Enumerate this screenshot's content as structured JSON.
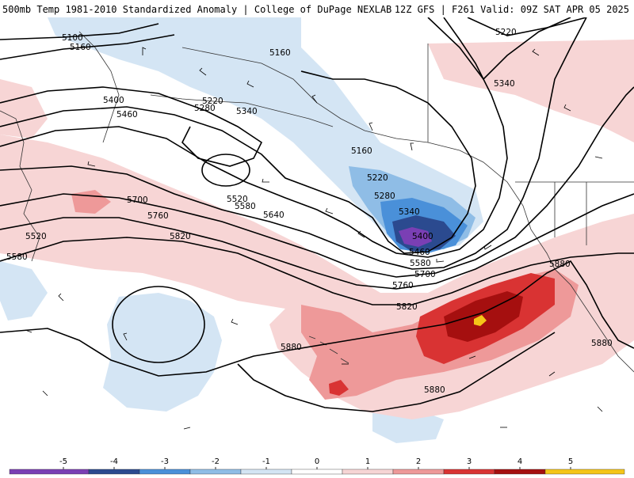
{
  "header": {
    "title_left": "500mb Temp 1981-2010 Standardized Anomaly | College of DuPage NEXLAB",
    "title_right": "12Z GFS | F261 Valid: 09Z SAT APR 05 2025"
  },
  "contour_labels": [
    "5100",
    "5160",
    "5160",
    "5220",
    "5220",
    "5280",
    "5340",
    "5400",
    "5460",
    "5160",
    "5220",
    "5280",
    "5340",
    "5400",
    "5460",
    "5520",
    "5580",
    "5640",
    "5700",
    "5760",
    "5820",
    "5520",
    "5580",
    "5580",
    "5700",
    "5760",
    "5820",
    "5880",
    "5880",
    "5880",
    "5880",
    "5340"
  ],
  "colorbar": {
    "tick_labels": [
      "-5",
      "-4",
      "-3",
      "-2",
      "-1",
      "0",
      "1",
      "2",
      "3",
      "4",
      "5"
    ],
    "colors": [
      "#7a3fb4",
      "#2b4a8f",
      "#4a90d9",
      "#8fbde6",
      "#d4e5f4",
      "#ffffff",
      "#f7d5d5",
      "#ee9999",
      "#d93333",
      "#a50f0f",
      "#f5c518"
    ]
  },
  "anomaly_colors": {
    "cold_light": "#d4e5f4",
    "cold_mid": "#8fbde6",
    "cold_strong": "#4a90d9",
    "cold_deep": "#2b4a8f",
    "cold_extreme": "#7a3fb4",
    "warm_light": "#f7d5d5",
    "warm_mid": "#ee9999",
    "warm_strong": "#d93333",
    "warm_deep": "#a50f0f",
    "warm_extreme": "#f5c518"
  }
}
